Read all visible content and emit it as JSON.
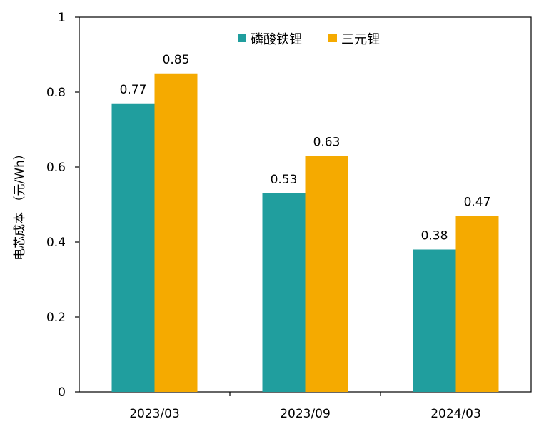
{
  "chart_data": {
    "type": "bar",
    "categories": [
      "2023/03",
      "2023/09",
      "2024/03"
    ],
    "series": [
      {
        "name": "磷酸铁锂",
        "values": [
          0.77,
          0.53,
          0.38
        ],
        "color": "#209E9E"
      },
      {
        "name": "三元锂",
        "values": [
          0.85,
          0.63,
          0.47
        ],
        "color": "#F5AA00"
      }
    ],
    "data_labels": [
      [
        "0.77",
        "0.53",
        "0.38"
      ],
      [
        "0.85",
        "0.63",
        "0.47"
      ]
    ],
    "ylabel": "电芯成本 （元/Wh）",
    "ylim": [
      0,
      1
    ],
    "yticks": [
      "0",
      "0.2",
      "0.4",
      "0.6",
      "0.8",
      "1"
    ],
    "grid": false,
    "legend_position": "top-center"
  }
}
